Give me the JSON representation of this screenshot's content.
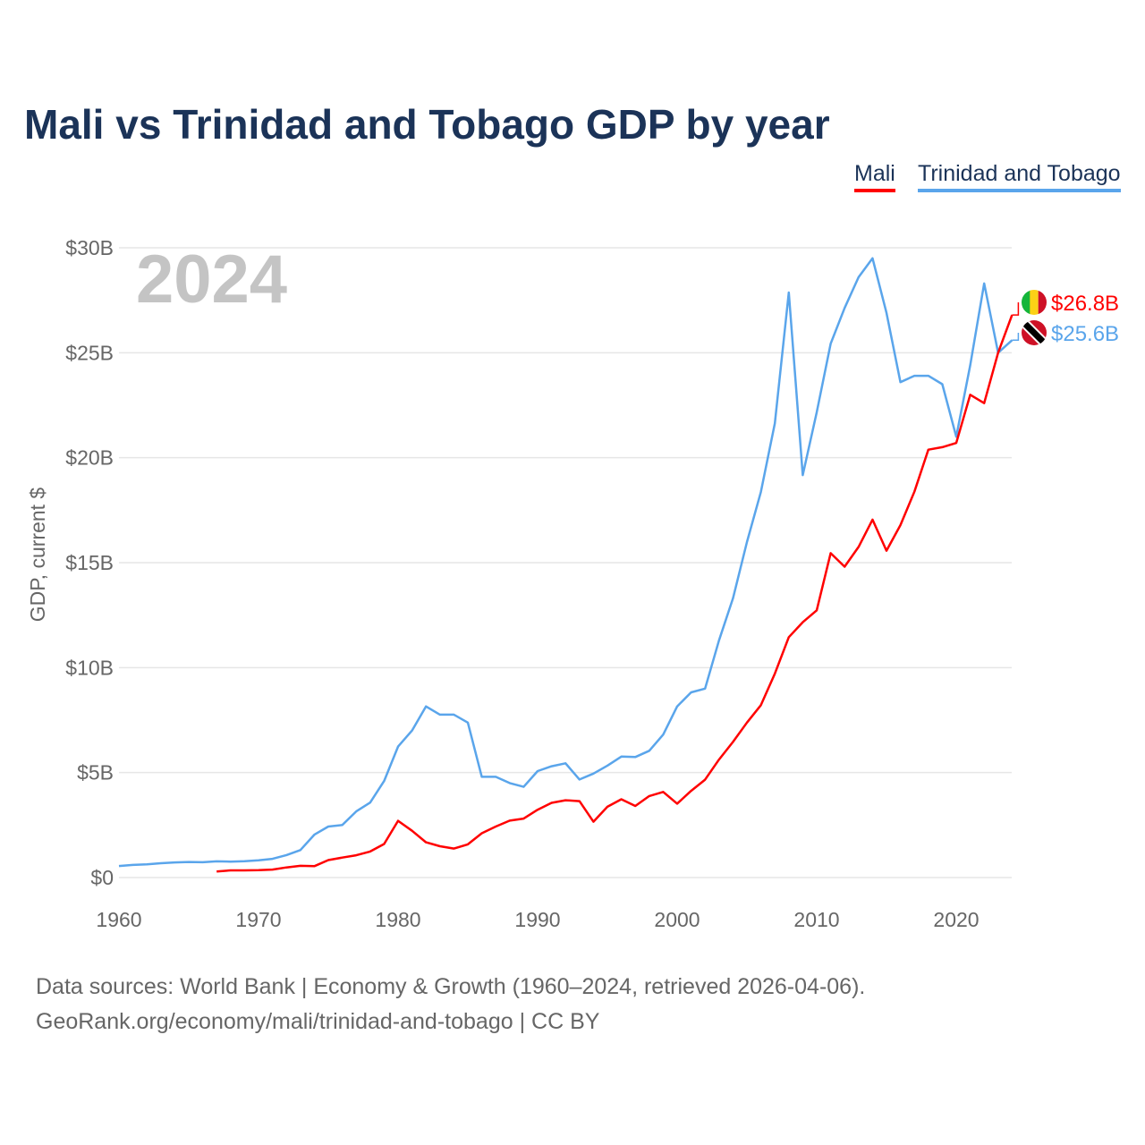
{
  "chart_data": {
    "type": "line",
    "title": "Mali vs Trinidad and Tobago GDP by year",
    "ylabel": "GDP, current $",
    "xlabel": "",
    "year_label": "2024",
    "xlim": [
      1960,
      2024
    ],
    "ylim": [
      0,
      30
    ],
    "x_ticks": [
      1960,
      1970,
      1980,
      1990,
      2000,
      2010,
      2020
    ],
    "y_ticks": [
      {
        "v": 0,
        "label": "$0"
      },
      {
        "v": 5,
        "label": "$5B"
      },
      {
        "v": 10,
        "label": "$10B"
      },
      {
        "v": 15,
        "label": "$15B"
      },
      {
        "v": 20,
        "label": "$20B"
      },
      {
        "v": 25,
        "label": "$25B"
      },
      {
        "v": 30,
        "label": "$30B"
      }
    ],
    "grid": true,
    "legend_position": "top-right",
    "series": [
      {
        "name": "Mali",
        "color": "#ff0000",
        "start_year": 1967,
        "end_label": "$26.8B",
        "flag": "mali-flag",
        "values": [
          0.29,
          0.34,
          0.34,
          0.35,
          0.38,
          0.48,
          0.56,
          0.54,
          0.83,
          0.95,
          1.06,
          1.24,
          1.6,
          2.7,
          2.23,
          1.68,
          1.49,
          1.38,
          1.58,
          2.11,
          2.43,
          2.71,
          2.81,
          3.23,
          3.56,
          3.68,
          3.64,
          2.66,
          3.37,
          3.73,
          3.41,
          3.88,
          4.08,
          3.52,
          4.13,
          4.66,
          5.62,
          6.46,
          7.38,
          8.21,
          9.71,
          11.45,
          12.16,
          12.73,
          15.45,
          14.81,
          15.75,
          17.05,
          15.57,
          16.79,
          18.38,
          20.38,
          20.5,
          20.7,
          23.0,
          22.6,
          25.0,
          26.8
        ]
      },
      {
        "name": "Trinidad and Tobago",
        "color": "#5aa5eb",
        "start_year": 1960,
        "end_label": "$25.6B",
        "flag": "trinidad-and-tobago-flag",
        "values": [
          0.55,
          0.6,
          0.63,
          0.68,
          0.72,
          0.74,
          0.73,
          0.77,
          0.76,
          0.78,
          0.82,
          0.89,
          1.07,
          1.31,
          2.04,
          2.43,
          2.5,
          3.15,
          3.57,
          4.6,
          6.24,
          7.0,
          8.15,
          7.76,
          7.76,
          7.38,
          4.8,
          4.8,
          4.5,
          4.32,
          5.07,
          5.3,
          5.44,
          4.67,
          4.95,
          5.33,
          5.76,
          5.74,
          6.04,
          6.81,
          8.15,
          8.82,
          9.0,
          11.3,
          13.3,
          15.98,
          18.37,
          21.64,
          27.87,
          19.17,
          22.16,
          25.43,
          27.13,
          28.6,
          29.5,
          26.9,
          23.6,
          23.9,
          23.9,
          23.5,
          21.0,
          24.4,
          28.3,
          25.0,
          25.6
        ]
      }
    ]
  },
  "source": {
    "line1": "Data sources: World Bank | Economy & Growth (1960–2024, retrieved 2026-04-06).",
    "line2": "GeoRank.org/economy/mali/trinidad-and-tobago | CC BY"
  }
}
